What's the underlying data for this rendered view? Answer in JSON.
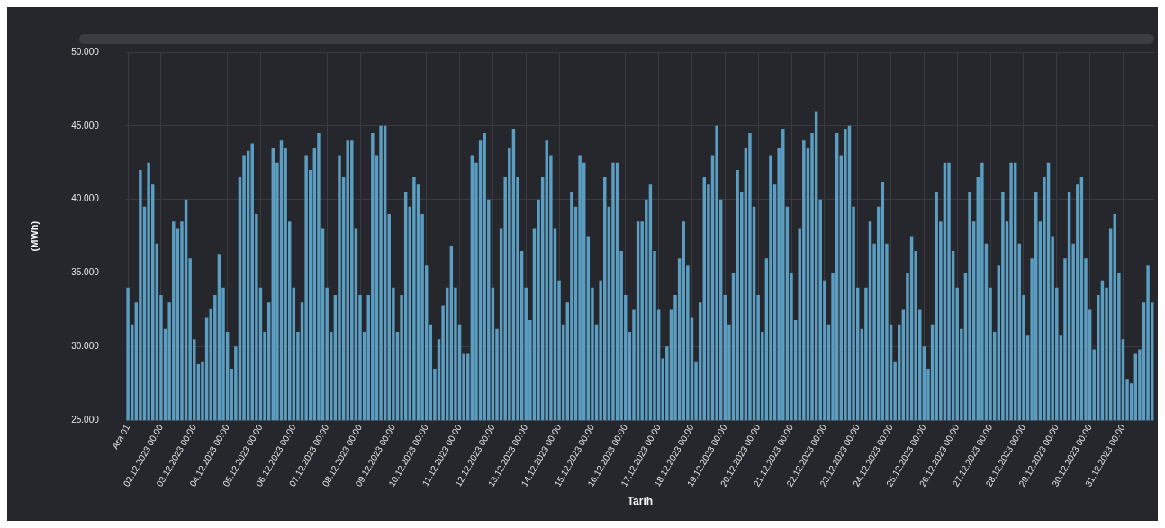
{
  "chart_data": {
    "type": "bar",
    "xlabel": "Tarih",
    "ylabel": "(MWh)",
    "color": "#5b9ec2",
    "categories": [
      "Ara 01",
      null,
      null,
      null,
      null,
      null,
      null,
      null,
      "02.12.2023 00:00",
      null,
      null,
      null,
      null,
      null,
      null,
      null,
      "03.12.2023 00:00",
      null,
      null,
      null,
      null,
      null,
      null,
      null,
      "04.12.2023 00:00",
      null,
      null,
      null,
      null,
      null,
      null,
      null,
      "05.12.2023 00:00",
      null,
      null,
      null,
      null,
      null,
      null,
      null,
      "06.12.2023 00:00",
      null,
      null,
      null,
      null,
      null,
      null,
      null,
      "07.12.2023 00:00",
      null,
      null,
      null,
      null,
      null,
      null,
      null,
      "08.12.2023 00:00",
      null,
      null,
      null,
      null,
      null,
      null,
      null,
      "09.12.2023 00:00",
      null,
      null,
      null,
      null,
      null,
      null,
      null,
      "10.12.2023 00:00",
      null,
      null,
      null,
      null,
      null,
      null,
      null,
      "11.12.2023 00:00",
      null,
      null,
      null,
      null,
      null,
      null,
      null,
      "12.12.2023 00:00",
      null,
      null,
      null,
      null,
      null,
      null,
      null,
      "13.12.2023 00:00",
      null,
      null,
      null,
      null,
      null,
      null,
      null,
      "14.12.2023 00:00",
      null,
      null,
      null,
      null,
      null,
      null,
      null,
      "15.12.2023 00:00",
      null,
      null,
      null,
      null,
      null,
      null,
      null,
      "16.12.2023 00:00",
      null,
      null,
      null,
      null,
      null,
      null,
      null,
      "17.12.2023 00:00",
      null,
      null,
      null,
      null,
      null,
      null,
      null,
      "18.12.2023 00:00",
      null,
      null,
      null,
      null,
      null,
      null,
      null,
      "19.12.2023 00:00",
      null,
      null,
      null,
      null,
      null,
      null,
      null,
      "20.12.2023 00:00",
      null,
      null,
      null,
      null,
      null,
      null,
      null,
      "21.12.2023 00:00",
      null,
      null,
      null,
      null,
      null,
      null,
      null,
      "22.12.2023 00:00",
      null,
      null,
      null,
      null,
      null,
      null,
      null,
      "23.12.2023 00:00",
      null,
      null,
      null,
      null,
      null,
      null,
      null,
      "24.12.2023 00:00",
      null,
      null,
      null,
      null,
      null,
      null,
      null,
      "25.12.2023 00:00",
      null,
      null,
      null,
      null,
      null,
      null,
      null,
      "26.12.2023 00:00",
      null,
      null,
      null,
      null,
      null,
      null,
      null,
      "27.12.2023 00:00",
      null,
      null,
      null,
      null,
      null,
      null,
      null,
      "28.12.2023 00:00",
      null,
      null,
      null,
      null,
      null,
      null,
      null,
      "29.12.2023 00:00",
      null,
      null,
      null,
      null,
      null,
      null,
      null,
      "30.12.2023 00:00",
      null,
      null,
      null,
      null,
      null,
      null,
      null,
      "31.12.2023 00:00",
      null,
      null,
      null,
      null,
      null,
      null,
      null
    ],
    "values": [
      34000,
      31500,
      33000,
      42000,
      39500,
      42500,
      41000,
      37000,
      33500,
      31200,
      33000,
      38500,
      38000,
      38500,
      40000,
      36000,
      30500,
      28800,
      29000,
      32000,
      32600,
      33500,
      36300,
      34000,
      31000,
      28500,
      30000,
      41500,
      43000,
      43300,
      43800,
      39000,
      34000,
      31000,
      33000,
      43500,
      42500,
      44000,
      43500,
      38500,
      34000,
      31000,
      33000,
      43000,
      42000,
      43500,
      44500,
      38000,
      34000,
      31000,
      33500,
      43000,
      41500,
      44000,
      44000,
      38000,
      33500,
      31000,
      33500,
      44500,
      43000,
      45000,
      45000,
      39000,
      34000,
      31000,
      33500,
      40500,
      39500,
      41500,
      41000,
      39000,
      35500,
      31500,
      28500,
      30500,
      32800,
      34000,
      36800,
      34000,
      31500,
      29500,
      29500,
      43000,
      42500,
      44000,
      44500,
      40000,
      34000,
      31200,
      38000,
      41500,
      43500,
      44800,
      41500,
      36500,
      34000,
      31800,
      38000,
      40000,
      41500,
      44000,
      43000,
      38000,
      34500,
      31500,
      33000,
      40500,
      39500,
      43000,
      42500,
      37500,
      34000,
      31500,
      34500,
      41500,
      39500,
      42500,
      42500,
      36500,
      33500,
      31000,
      32500,
      38500,
      38500,
      40000,
      41000,
      36500,
      32500,
      29200,
      30000,
      32500,
      33500,
      36000,
      38500,
      35500,
      32000,
      29000,
      33000,
      41500,
      41000,
      43000,
      45000,
      40000,
      33500,
      31500,
      35000,
      42000,
      40500,
      43500,
      44500,
      39500,
      33500,
      31000,
      36000,
      43000,
      41000,
      43500,
      44800,
      39500,
      35000,
      31800,
      38000,
      44000,
      43500,
      44500,
      46000,
      40000,
      34500,
      31500,
      35000,
      44500,
      43000,
      44800,
      45000,
      39500,
      34000,
      31200,
      34000,
      38500,
      37000,
      39500,
      41200,
      37000,
      31500,
      29000,
      31500,
      32500,
      35000,
      37500,
      36500,
      32500,
      30000,
      28500,
      31500,
      40500,
      38500,
      42500,
      42500,
      36500,
      34000,
      31200,
      35000,
      40500,
      38500,
      41500,
      42500,
      37000,
      34000,
      31000,
      35500,
      40500,
      38500,
      42500,
      42500,
      37000,
      33500,
      30800,
      36000,
      40500,
      38500,
      41500,
      42500,
      37500,
      34000,
      30800,
      36000,
      40500,
      37000,
      41000,
      41500,
      36000,
      32500,
      29800,
      33500,
      34500,
      34000,
      38000,
      39000,
      35000,
      30500,
      27800,
      27500,
      29500,
      29800,
      33000,
      35500,
      33000
    ],
    "ylim": [
      25000,
      50000
    ],
    "yticks": [
      {
        "value": 25000,
        "label": "25.000"
      },
      {
        "value": 30000,
        "label": "30.000"
      },
      {
        "value": 35000,
        "label": "35.000"
      },
      {
        "value": 40000,
        "label": "40.000"
      },
      {
        "value": 45000,
        "label": "45.000"
      },
      {
        "value": 50000,
        "label": "50.000"
      }
    ],
    "grid": true
  }
}
